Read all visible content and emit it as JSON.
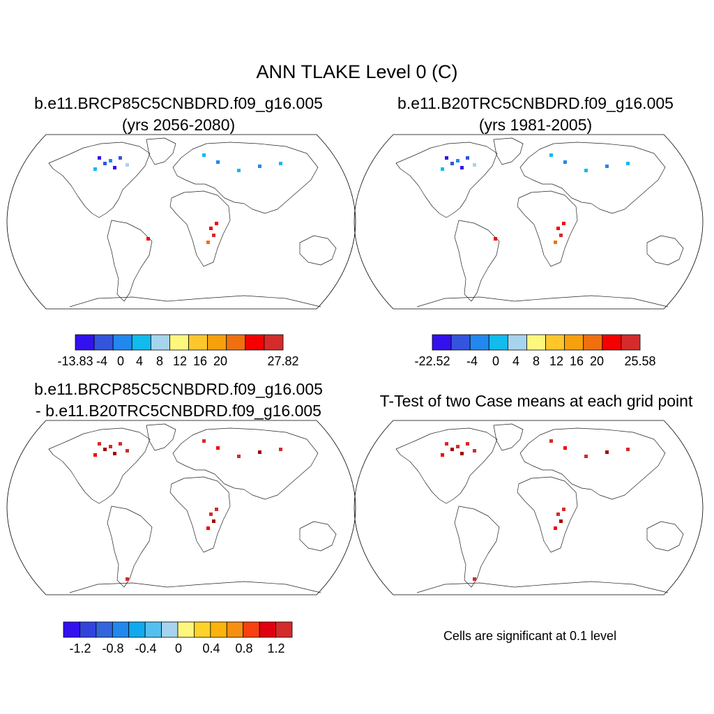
{
  "figure": {
    "title": "ANN TLAKE Level 0 (C)",
    "panels": [
      {
        "title_line1": "b.e11.BRCP85C5CNBDRD.f09_g16.005",
        "title_line2": "(yrs 2056-2080)",
        "colorbar": {
          "colors": [
            "#3311ee",
            "#3355dd",
            "#2288ee",
            "#11bbee",
            "#a6d4ee",
            "#fef77e",
            "#fdc62a",
            "#f6a00c",
            "#f07010",
            "#f40000",
            "#d42b2b"
          ],
          "labels": [
            "-13.83",
            "-4",
            "0",
            "4",
            "8",
            "12",
            "16",
            "20",
            "27.82"
          ]
        }
      },
      {
        "title_line1": "b.e11.B20TRC5CNBDRD.f09_g16.005",
        "title_line2": "(yrs 1981-2005)",
        "colorbar": {
          "colors": [
            "#3311ee",
            "#3355dd",
            "#2288ee",
            "#11bbee",
            "#a6d4ee",
            "#fef77e",
            "#fdc62a",
            "#f6a00c",
            "#f07010",
            "#f40000",
            "#d42b2b"
          ],
          "labels": [
            "-22.52",
            "-4",
            "0",
            "4",
            "8",
            "12",
            "16",
            "20",
            "25.58"
          ]
        }
      },
      {
        "title_line1": "b.e11.BRCP85C5CNBDRD.f09_g16.005",
        "title_line2": "- b.e11.B20TRC5CNBDRD.f09_g16.005",
        "colorbar": {
          "colors": [
            "#3311ee",
            "#3344dd",
            "#3366dd",
            "#2288ee",
            "#11aaee",
            "#55c0ee",
            "#a6d4ee",
            "#fef77e",
            "#fdd32a",
            "#fbb40c",
            "#f69010",
            "#f84010",
            "#e00010",
            "#d42b2b"
          ],
          "labels": [
            "-1.2",
            "-0.8",
            "-0.4",
            "0",
            "0.4",
            "0.8",
            "1.2"
          ]
        }
      },
      {
        "title_line1": "T-Test of two Case means at each grid point",
        "note": "Cells are significant at 0.1 level"
      }
    ]
  }
}
